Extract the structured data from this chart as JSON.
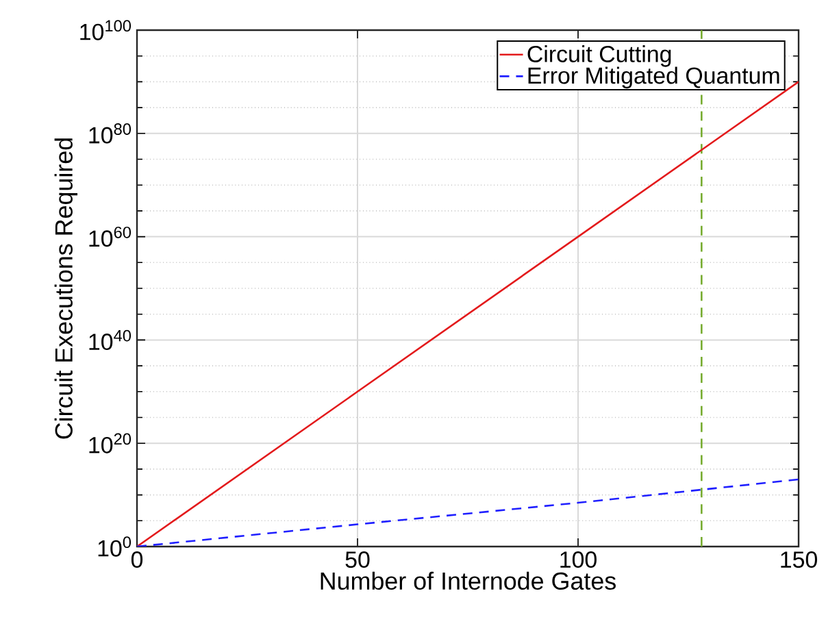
{
  "chart_data": {
    "type": "line",
    "xlabel": "Number of Internode Gates",
    "ylabel": "Circuit Executions Required",
    "log": "y",
    "grid": true,
    "legend": "top right",
    "marker": "none",
    "xlim": [
      0,
      150
    ],
    "xticks": [
      0,
      50,
      100,
      150
    ],
    "ylim": [
      1,
      1e+100
    ],
    "yticks": [
      {
        "value": 1,
        "label": "10$^{0}$"
      },
      {
        "value": 100000.0,
        "label": null
      },
      {
        "value": 10000000000.0,
        "label": null
      },
      {
        "value": 1000000000000000.0,
        "label": null
      },
      {
        "value": 1e+20,
        "label": "10$^{20}$"
      },
      {
        "value": 1e+25,
        "label": null
      },
      {
        "value": 1e+30,
        "label": null
      },
      {
        "value": 1e+35,
        "label": null
      },
      {
        "value": 1e+40,
        "label": "10$^{40}$"
      },
      {
        "value": 1e+45,
        "label": null
      },
      {
        "value": 1e+50,
        "label": null
      },
      {
        "value": 1e+55,
        "label": null
      },
      {
        "value": 1e+60,
        "label": "10$^{60}$"
      },
      {
        "value": 1e+65,
        "label": null
      },
      {
        "value": 1e+70,
        "label": null
      },
      {
        "value": 1e+75,
        "label": null
      },
      {
        "value": 1e+80,
        "label": "10$^{80}$"
      },
      {
        "value": 1e+85,
        "label": null
      },
      {
        "value": 1e+90,
        "label": null
      },
      {
        "value": 1e+95,
        "label": null
      },
      {
        "value": 1e+100,
        "label": "10$^{100}$"
      }
    ],
    "series": [
      {
        "name": "Circuit Cutting",
        "color": "#e31a1c",
        "line_style": "solid",
        "x": [
          0,
          50,
          100,
          150
        ],
        "values": [
          1,
          1e+30,
          1e+60,
          1e+90
        ]
      },
      {
        "name": "Error Mitigated Quantum",
        "color": "#1f1fff",
        "line_style": "dashed",
        "x": [
          0,
          50,
          100,
          150
        ],
        "values": [
          1,
          20000.0,
          300000000.0,
          10000000000000.0
        ]
      }
    ],
    "ref_lines": [
      {
        "axis": "x",
        "value": 128,
        "color": "#77ac30",
        "line_style": "dashed"
      }
    ]
  }
}
